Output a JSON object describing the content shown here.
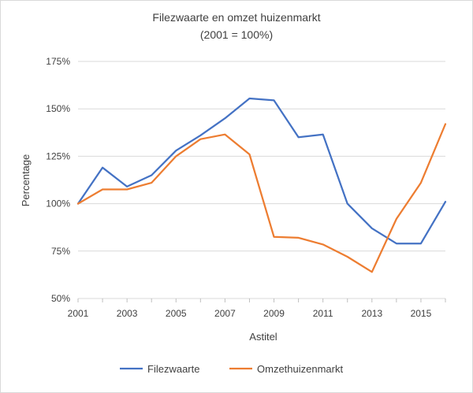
{
  "chart_data": {
    "type": "line",
    "title": "Filezwaarte en omzet huizenmarkt",
    "subtitle": "(2001 = 100%)",
    "xlabel": "Astitel",
    "ylabel": "Percentage",
    "x": [
      2001,
      2002,
      2003,
      2004,
      2005,
      2006,
      2007,
      2008,
      2009,
      2010,
      2011,
      2012,
      2013,
      2014,
      2015,
      2016
    ],
    "x_ticks": [
      "2001",
      "2003",
      "2005",
      "2007",
      "2009",
      "2011",
      "2013",
      "2015"
    ],
    "y_ticks": [
      "50%",
      "75%",
      "100%",
      "125%",
      "150%",
      "175%"
    ],
    "ylim": [
      50,
      175
    ],
    "grid": "horizontal",
    "legend": "bottom",
    "series": [
      {
        "name": "Filezwaarte",
        "color": "#4472c4",
        "values": [
          100,
          119,
          109,
          115,
          128,
          136,
          145,
          155.5,
          154.5,
          135,
          136.5,
          100,
          87,
          79,
          79,
          101
        ]
      },
      {
        "name": "Omzethuizenmarkt",
        "color": "#ed7d31",
        "values": [
          100,
          107.5,
          107.5,
          111,
          125,
          134,
          136.5,
          126,
          82.5,
          82,
          78.5,
          72,
          64,
          92,
          111,
          142
        ]
      }
    ]
  }
}
